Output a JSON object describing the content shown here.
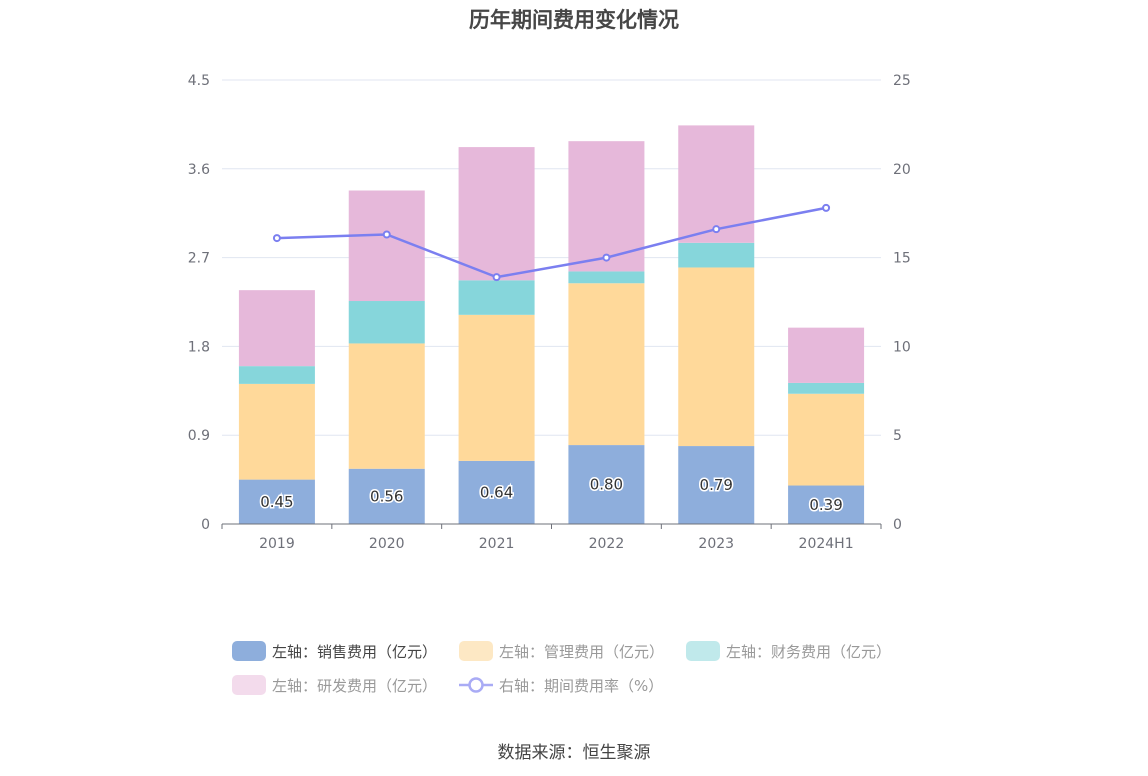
{
  "chart_data": {
    "type": "bar",
    "title": "历年期间费用变化情况",
    "categories": [
      "2019",
      "2020",
      "2021",
      "2022",
      "2023",
      "2024H1"
    ],
    "stacked": true,
    "left_axis": {
      "ylim": [
        0,
        4.5
      ],
      "ticks": [
        "0",
        "0.9",
        "1.8",
        "2.7",
        "3.6",
        "4.5"
      ]
    },
    "right_axis": {
      "ylim": [
        0,
        25
      ],
      "ticks": [
        "0",
        "5",
        "10",
        "15",
        "20",
        "25"
      ]
    },
    "grid": true,
    "series": [
      {
        "name": "左轴：销售费用（亿元）",
        "type": "bar",
        "axis": "left",
        "color": "#8eaedc",
        "values": [
          0.45,
          0.56,
          0.64,
          0.8,
          0.79,
          0.39
        ],
        "labels": [
          "0.45",
          "0.56",
          "0.64",
          "0.80",
          "0.79",
          "0.39"
        ]
      },
      {
        "name": "左轴：管理费用（亿元）",
        "type": "bar",
        "axis": "left",
        "color": "#ffd99a",
        "values": [
          0.97,
          1.27,
          1.48,
          1.64,
          1.81,
          0.93
        ]
      },
      {
        "name": "左轴：财务费用（亿元）",
        "type": "bar",
        "axis": "left",
        "color": "#86d6db",
        "values": [
          0.18,
          0.43,
          0.35,
          0.12,
          0.25,
          0.11
        ]
      },
      {
        "name": "左轴：研发费用（亿元）",
        "type": "bar",
        "axis": "left",
        "color": "#e6b8da",
        "values": [
          0.77,
          1.12,
          1.35,
          1.32,
          1.19,
          0.56
        ]
      },
      {
        "name": "右轴：期间费用率（%）",
        "type": "line",
        "axis": "right",
        "color": "#7b7ff0",
        "values": [
          16.1,
          16.3,
          13.9,
          15.0,
          16.6,
          17.8
        ]
      }
    ],
    "legend_placement": "bottom",
    "source": "数据来源：恒生聚源"
  },
  "legend": [
    {
      "label": "左轴：销售费用（亿元）",
      "color": "#8eaedc",
      "kind": "bar",
      "row": 0
    },
    {
      "label": "左轴：管理费用（亿元）",
      "color": "#fde8c4",
      "kind": "bar",
      "row": 0
    },
    {
      "label": "左轴：财务费用（亿元）",
      "color": "#c0e9eb",
      "kind": "bar",
      "row": 0
    },
    {
      "label": "左轴：研发费用（亿元）",
      "color": "#f3dbec",
      "kind": "bar",
      "row": 1
    },
    {
      "label": "右轴：期间费用率（%）",
      "color": "#a9abf5",
      "kind": "line",
      "row": 1
    }
  ]
}
